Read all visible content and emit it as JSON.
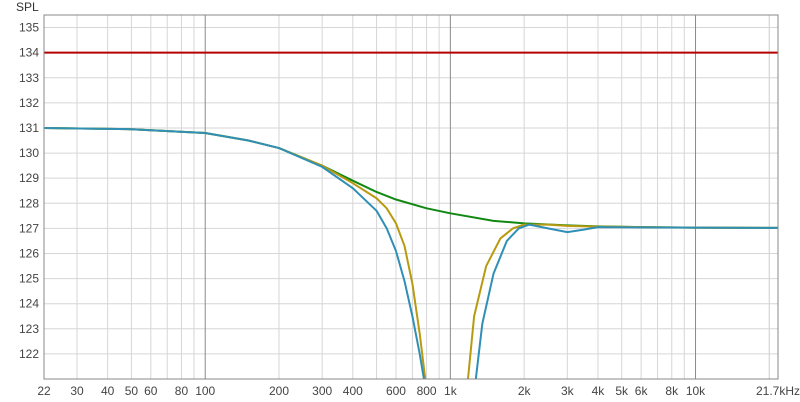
{
  "chart_data": {
    "type": "line",
    "title": "",
    "ylabel": "SPL",
    "xscale": "log",
    "xlim": [
      22,
      21700
    ],
    "ylim": [
      121,
      135.5
    ],
    "grid": true,
    "x_tick_labels": [
      {
        "value": 22,
        "label": "22"
      },
      {
        "value": 30,
        "label": "30"
      },
      {
        "value": 40,
        "label": "40"
      },
      {
        "value": 50,
        "label": "50"
      },
      {
        "value": 60,
        "label": "60"
      },
      {
        "value": 80,
        "label": "80"
      },
      {
        "value": 100,
        "label": "100"
      },
      {
        "value": 200,
        "label": "200"
      },
      {
        "value": 300,
        "label": "300"
      },
      {
        "value": 400,
        "label": "400"
      },
      {
        "value": 600,
        "label": "600"
      },
      {
        "value": 800,
        "label": "800"
      },
      {
        "value": 1000,
        "label": "1k"
      },
      {
        "value": 2000,
        "label": "2k"
      },
      {
        "value": 3000,
        "label": "3k"
      },
      {
        "value": 4000,
        "label": "4k"
      },
      {
        "value": 5000,
        "label": "5k"
      },
      {
        "value": 6000,
        "label": "6k"
      },
      {
        "value": 8000,
        "label": "8k"
      },
      {
        "value": 10000,
        "label": "10k"
      },
      {
        "value": 21700,
        "label": "21.7kHz"
      }
    ],
    "y_tick_labels": [
      {
        "value": 122,
        "label": "122"
      },
      {
        "value": 123,
        "label": "123"
      },
      {
        "value": 124,
        "label": "124"
      },
      {
        "value": 125,
        "label": "125"
      },
      {
        "value": 126,
        "label": "126"
      },
      {
        "value": 127,
        "label": "127"
      },
      {
        "value": 128,
        "label": "128"
      },
      {
        "value": 129,
        "label": "129"
      },
      {
        "value": 130,
        "label": "130"
      },
      {
        "value": 131,
        "label": "131"
      },
      {
        "value": 132,
        "label": "132"
      },
      {
        "value": 133,
        "label": "133"
      },
      {
        "value": 134,
        "label": "134"
      },
      {
        "value": 135,
        "label": "135"
      }
    ],
    "series": [
      {
        "color": "#b30000",
        "x": [
          22,
          21700
        ],
        "y": [
          134,
          134
        ]
      },
      {
        "color": "#118811",
        "x": [
          22,
          50,
          100,
          150,
          200,
          300,
          400,
          500,
          600,
          800,
          1000,
          1500,
          2000,
          3000,
          4000,
          6000,
          10000,
          21700
        ],
        "y": [
          131,
          130.95,
          130.8,
          130.5,
          130.2,
          129.5,
          128.9,
          128.45,
          128.15,
          127.8,
          127.6,
          127.3,
          127.2,
          127.12,
          127.08,
          127.05,
          127.03,
          127.02
        ]
      },
      {
        "color": "#b89a10",
        "x": [
          22,
          50,
          100,
          150,
          200,
          300,
          400,
          500,
          550,
          600,
          650,
          700,
          750,
          790,
          null,
          1180,
          1250,
          1400,
          1600,
          1800,
          2000,
          2500,
          3000,
          4000,
          6000,
          10000,
          21700
        ],
        "y": [
          131,
          130.95,
          130.8,
          130.5,
          130.2,
          129.5,
          128.8,
          128.2,
          127.8,
          127.2,
          126.3,
          124.8,
          122.8,
          121,
          null,
          121,
          123.5,
          125.5,
          126.6,
          127,
          127.15,
          127.15,
          127.1,
          127.07,
          127.05,
          127.03,
          127.02
        ]
      },
      {
        "color": "#2f8fb5",
        "x": [
          22,
          50,
          100,
          150,
          200,
          300,
          400,
          500,
          550,
          600,
          650,
          700,
          750,
          780,
          null,
          1270,
          1350,
          1500,
          1700,
          1900,
          2100,
          2500,
          3000,
          3500,
          4000,
          6000,
          10000,
          21700
        ],
        "y": [
          131,
          130.95,
          130.8,
          130.5,
          130.2,
          129.45,
          128.6,
          127.7,
          127,
          126.1,
          124.9,
          123.5,
          122,
          121,
          null,
          121,
          123.2,
          125.2,
          126.5,
          127,
          127.15,
          127,
          126.85,
          126.95,
          127.05,
          127.04,
          127.03,
          127.02
        ]
      }
    ]
  }
}
